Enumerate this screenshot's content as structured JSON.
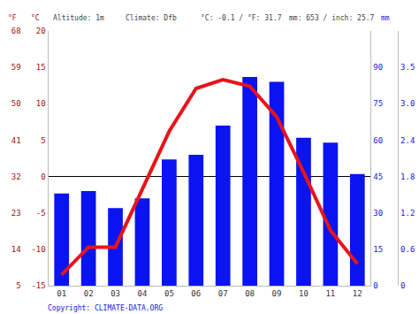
{
  "chart_data": {
    "type": "bar",
    "annotations": [
      "Altitude: 1m",
      "Climate: Dfb",
      "°C: -0.1 / °F: 31.7",
      "mm: 653 / inch: 25.7",
      "Copyright: CLIMATE-DATA.ORG"
    ],
    "ylabel": "°C",
    "y2label": "mm",
    "y3label": "°F",
    "categories": [
      "01",
      "02",
      "03",
      "04",
      "05",
      "06",
      "07",
      "08",
      "09",
      "10",
      "11",
      "12"
    ],
    "series": [
      {
        "type": "bar",
        "axis": "y2",
        "color": "#0a14f0",
        "values": [
          38,
          39,
          32,
          36,
          52,
          54,
          66,
          86,
          84,
          61,
          59,
          46
        ]
      },
      {
        "type": "line",
        "color": "#e8141b",
        "values": [
          -13.5,
          -9.7,
          -9.7,
          -1.8,
          6.2,
          12.1,
          13.3,
          12.4,
          8.2,
          0.6,
          -7.4,
          -12.0
        ]
      }
    ],
    "ylim": [
      -15,
      20
    ],
    "yticks": [
      -15,
      -10,
      -5,
      0,
      5,
      10,
      15,
      20
    ],
    "y2lim": [
      0,
      105
    ],
    "y2ticks": [
      0,
      15,
      30,
      45,
      60,
      75,
      90
    ],
    "y3lim": [
      5,
      68
    ],
    "y3ticks": [
      5,
      14,
      23,
      32,
      41,
      50,
      59,
      68
    ],
    "y4lim": [
      0,
      4.134
    ],
    "y4ticks": [
      0,
      {
        "value": 0.591,
        "label": "0.6"
      },
      {
        "value": 1.181,
        "label": "1.2"
      },
      {
        "value": 1.772,
        "label": "1.8"
      },
      {
        "value": 2.362,
        "label": "2.4"
      },
      {
        "value": 2.953,
        "label": "3.0"
      },
      {
        "value": 3.543,
        "label": "3.5"
      }
    ],
    "grid": false
  }
}
